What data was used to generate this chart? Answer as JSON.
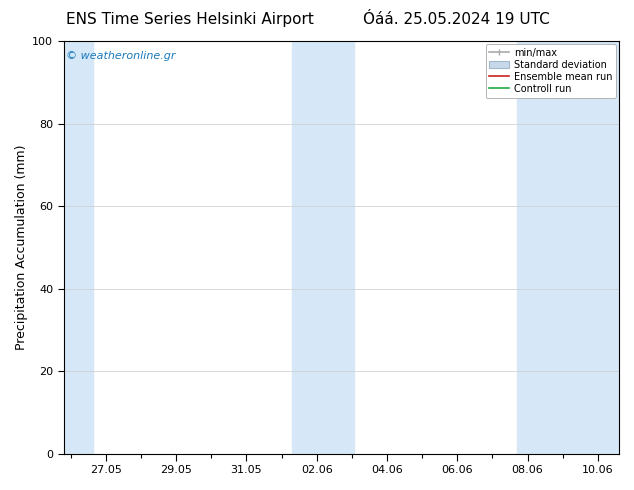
{
  "title_left": "ENS Time Series Helsinki Airport",
  "title_right": "Óáá. 25.05.2024 19 UTC",
  "ylabel": "Precipitation Accumulation (mm)",
  "watermark": "© weatheronline.gr",
  "watermark_color": "#1a7abf",
  "ylim": [
    0,
    100
  ],
  "yticks": [
    0,
    20,
    40,
    60,
    80,
    100
  ],
  "x_tick_labels": [
    "27.05",
    "29.05",
    "31.05",
    "02.06",
    "04.06",
    "06.06",
    "08.06",
    "10.06"
  ],
  "band_color": "#d6e8f7",
  "bg_color": "#ffffff",
  "title_fontsize": 11,
  "tick_fontsize": 8,
  "ylabel_fontsize": 9,
  "legend_fontsize": 7,
  "minmax_color": "#aaaaaa",
  "stddev_color": "#c8d8eb",
  "stddev_edge": "#a0b8cc",
  "ensemble_color": "#cc2222",
  "control_color": "#22aa44"
}
